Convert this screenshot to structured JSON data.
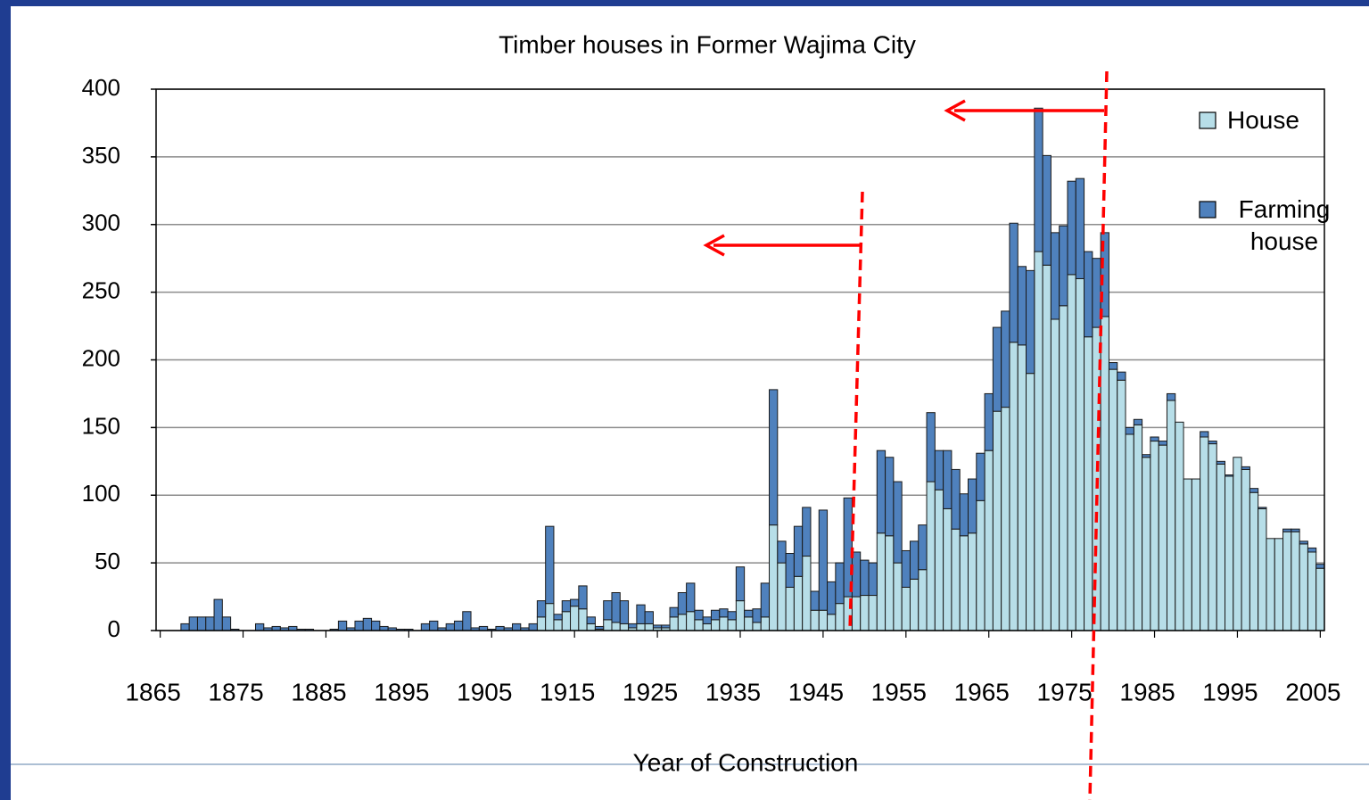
{
  "chart_data": {
    "type": "bar",
    "stacked": true,
    "title": "Timber houses in  Former Wajima City",
    "xlabel": "Year of Construction",
    "x": [
      1865,
      1866,
      1867,
      1868,
      1869,
      1870,
      1871,
      1872,
      1873,
      1874,
      1875,
      1876,
      1877,
      1878,
      1879,
      1880,
      1881,
      1882,
      1883,
      1884,
      1885,
      1886,
      1887,
      1888,
      1889,
      1890,
      1891,
      1892,
      1893,
      1894,
      1895,
      1896,
      1897,
      1898,
      1899,
      1900,
      1901,
      1902,
      1903,
      1904,
      1905,
      1906,
      1907,
      1908,
      1909,
      1910,
      1911,
      1912,
      1913,
      1914,
      1915,
      1916,
      1917,
      1918,
      1919,
      1920,
      1921,
      1922,
      1923,
      1924,
      1925,
      1926,
      1927,
      1928,
      1929,
      1930,
      1931,
      1932,
      1933,
      1934,
      1935,
      1936,
      1937,
      1938,
      1939,
      1940,
      1941,
      1942,
      1943,
      1944,
      1945,
      1946,
      1947,
      1948,
      1949,
      1950,
      1951,
      1952,
      1953,
      1954,
      1955,
      1956,
      1957,
      1958,
      1959,
      1960,
      1961,
      1962,
      1963,
      1964,
      1965,
      1966,
      1967,
      1968,
      1969,
      1970,
      1971,
      1972,
      1973,
      1974,
      1975,
      1976,
      1977,
      1978,
      1979,
      1980,
      1981,
      1982,
      1983,
      1984,
      1985,
      1986,
      1987,
      1988,
      1989,
      1990,
      1991,
      1992,
      1993,
      1994,
      1995,
      1996,
      1997,
      1998,
      1999,
      2000,
      2001,
      2002,
      2003,
      2004,
      2005
    ],
    "series": [
      {
        "name": "House",
        "color": "#b7dee8",
        "values": [
          0,
          0,
          0,
          0,
          0,
          0,
          0,
          0,
          0,
          0,
          0,
          0,
          0,
          0,
          0,
          0,
          0,
          0,
          0,
          0,
          0,
          0,
          0,
          0,
          0,
          0,
          0,
          0,
          0,
          0,
          0,
          0,
          0,
          0,
          0,
          0,
          0,
          0,
          0,
          0,
          0,
          0,
          0,
          0,
          0,
          0,
          10,
          20,
          8,
          14,
          18,
          16,
          5,
          1,
          8,
          6,
          5,
          2,
          5,
          5,
          2,
          2,
          10,
          12,
          14,
          8,
          5,
          8,
          10,
          8,
          22,
          10,
          6,
          10,
          78,
          50,
          32,
          40,
          55,
          15,
          15,
          12,
          20,
          25,
          25,
          26,
          26,
          72,
          70,
          50,
          32,
          38,
          45,
          110,
          104,
          90,
          75,
          70,
          72,
          96,
          133,
          162,
          165,
          213,
          211,
          190,
          280,
          270,
          230,
          240,
          263,
          260,
          217,
          224,
          232,
          193,
          185,
          145,
          152,
          128,
          140,
          137,
          170,
          154,
          112,
          112,
          143,
          138,
          123,
          114,
          128,
          119,
          102,
          90,
          68,
          68,
          73,
          73,
          64,
          58,
          46
        ]
      },
      {
        "name": "Farming house",
        "color": "#4f81bd",
        "values": [
          0,
          0,
          0,
          5,
          10,
          10,
          10,
          23,
          10,
          1,
          0,
          0,
          5,
          2,
          3,
          2,
          3,
          1,
          1,
          0,
          0,
          1,
          7,
          2,
          7,
          9,
          7,
          3,
          2,
          1,
          1,
          0,
          5,
          7,
          2,
          5,
          7,
          14,
          2,
          3,
          1,
          3,
          2,
          5,
          2,
          5,
          12,
          57,
          4,
          8,
          5,
          17,
          5,
          2,
          14,
          22,
          17,
          3,
          14,
          9,
          2,
          2,
          7,
          16,
          21,
          7,
          5,
          7,
          6,
          6,
          25,
          5,
          10,
          25,
          100,
          16,
          25,
          37,
          36,
          14,
          74,
          24,
          30,
          73,
          33,
          26,
          24,
          61,
          58,
          60,
          27,
          28,
          33,
          51,
          29,
          43,
          44,
          31,
          40,
          35,
          42,
          62,
          71,
          88,
          58,
          76,
          106,
          81,
          64,
          59,
          69,
          74,
          63,
          51,
          62,
          5,
          6,
          5,
          4,
          2,
          3,
          3,
          5,
          0,
          0,
          0,
          4,
          2,
          2,
          1,
          0,
          2,
          3,
          1,
          0,
          0,
          2,
          2,
          2,
          3,
          3
        ]
      }
    ],
    "xlim": [
      1864.5,
      2005.5
    ],
    "xticks": [
      1865,
      1875,
      1885,
      1895,
      1905,
      1915,
      1925,
      1935,
      1945,
      1955,
      1965,
      1975,
      1985,
      1995,
      2005
    ],
    "ylim": [
      0,
      400
    ],
    "yticks": [
      0,
      50,
      100,
      150,
      200,
      250,
      300,
      350,
      400
    ],
    "grid": true,
    "legend": "top-right"
  }
}
